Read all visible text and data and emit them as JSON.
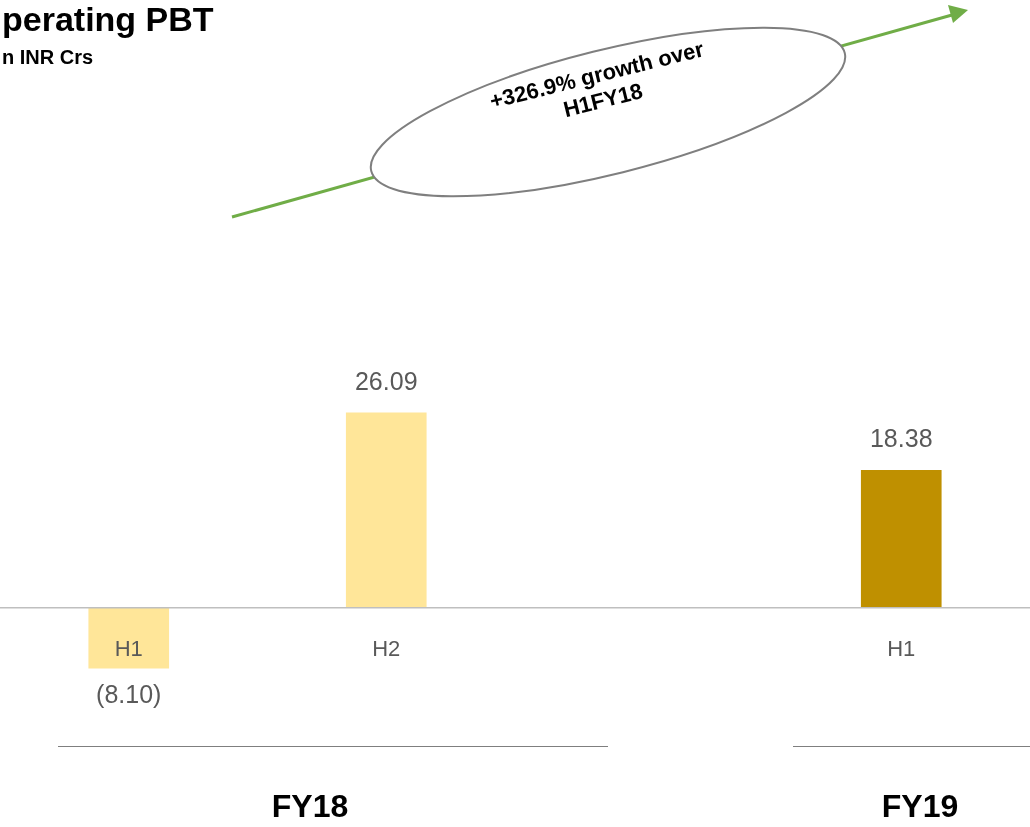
{
  "chart_data": {
    "type": "bar",
    "title": "perating PBT",
    "subtitle": "n INR Crs",
    "categories": [
      "H1",
      "H2",
      null,
      "H1"
    ],
    "values": [
      -8.1,
      26.09,
      null,
      18.38
    ],
    "colors": [
      "#ffe699",
      "#ffe699",
      "#ffe699",
      "#bf9000"
    ],
    "value_labels": [
      "(8.10)",
      "26.09",
      null,
      "18.38"
    ],
    "annotations": [
      "+326.9% growth over H1FY18",
      "FY18",
      "FY19"
    ]
  }
}
